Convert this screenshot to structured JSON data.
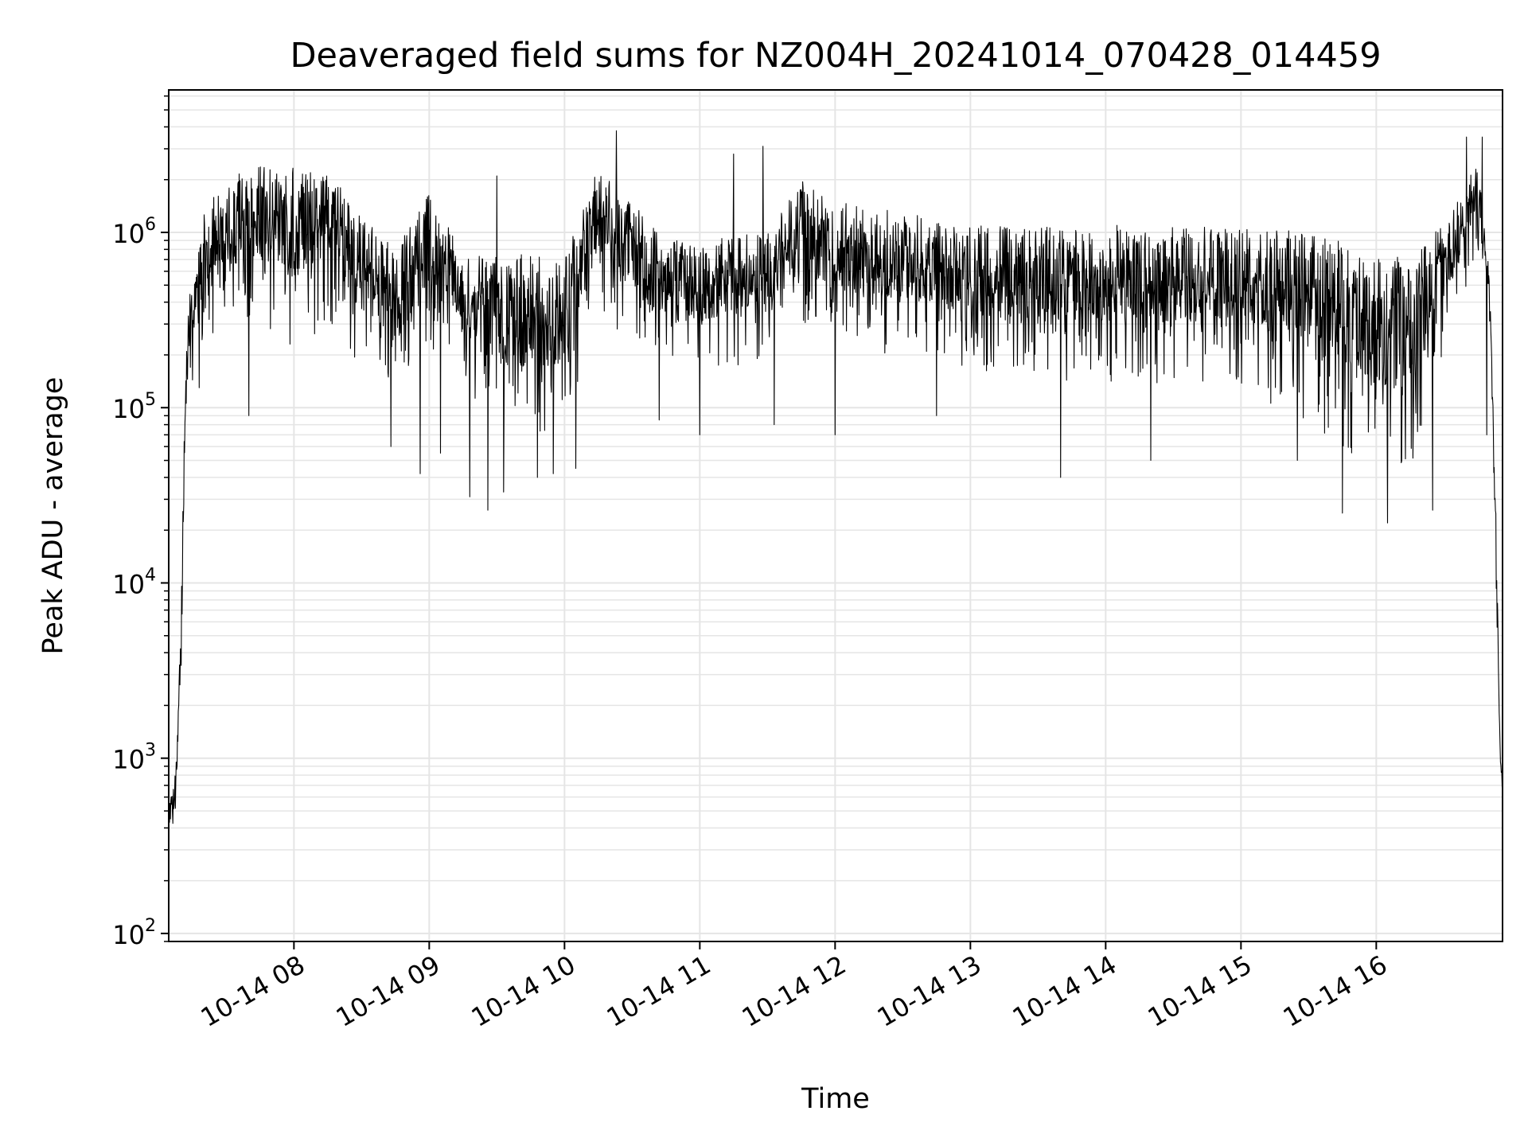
{
  "chart_data": {
    "type": "line",
    "title": "Deaveraged field sums for NZ004H_20241014_070428_014459",
    "xlabel": "Time",
    "ylabel": "Peak ADU - average",
    "yscale": "log",
    "ylim": [
      90,
      6500000
    ],
    "xlim": [
      "2024-10-14 07:04:28",
      "2024-10-14 16:56:00"
    ],
    "grid": true,
    "line_color": "#000000",
    "grid_color": "#e5e5e5",
    "x_ticks": [
      {
        "time": "2024-10-14 08:00",
        "label": "10-14 08"
      },
      {
        "time": "2024-10-14 09:00",
        "label": "10-14 09"
      },
      {
        "time": "2024-10-14 10:00",
        "label": "10-14 10"
      },
      {
        "time": "2024-10-14 11:00",
        "label": "10-14 11"
      },
      {
        "time": "2024-10-14 12:00",
        "label": "10-14 12"
      },
      {
        "time": "2024-10-14 13:00",
        "label": "10-14 13"
      },
      {
        "time": "2024-10-14 14:00",
        "label": "10-14 14"
      },
      {
        "time": "2024-10-14 15:00",
        "label": "10-14 15"
      },
      {
        "time": "2024-10-14 16:00",
        "label": "10-14 16"
      }
    ],
    "y_ticks": [
      {
        "value": 100,
        "base": "10",
        "exp": "2"
      },
      {
        "value": 1000,
        "base": "10",
        "exp": "3"
      },
      {
        "value": 10000,
        "base": "10",
        "exp": "4"
      },
      {
        "value": 100000,
        "base": "10",
        "exp": "5"
      },
      {
        "value": 1000000,
        "base": "10",
        "exp": "6"
      }
    ],
    "series": [
      {
        "name": "",
        "envelope": [
          {
            "time": "2024-10-14 07:04:28",
            "low": 260,
            "high": 600
          },
          {
            "time": "2024-10-14 07:06:00",
            "low": 350,
            "high": 700
          },
          {
            "time": "2024-10-14 07:08:00",
            "low": 450,
            "high": 1000
          },
          {
            "time": "2024-10-14 07:10:00",
            "low": 1500,
            "high": 12000
          },
          {
            "time": "2024-10-14 07:12:00",
            "low": 60000,
            "high": 170000
          },
          {
            "time": "2024-10-14 07:14:00",
            "low": 130000,
            "high": 550000
          },
          {
            "time": "2024-10-14 07:20:00",
            "low": 170000,
            "high": 1400000
          },
          {
            "time": "2024-10-14 07:30:00",
            "low": 300000,
            "high": 2000000
          },
          {
            "time": "2024-10-14 07:45:00",
            "low": 300000,
            "high": 2500000
          },
          {
            "time": "2024-10-14 08:00:00",
            "low": 200000,
            "high": 2500000
          },
          {
            "time": "2024-10-14 08:15:00",
            "low": 300000,
            "high": 2300000
          },
          {
            "time": "2024-10-14 08:30:00",
            "low": 150000,
            "high": 1300000
          },
          {
            "time": "2024-10-14 08:45:00",
            "low": 100000,
            "high": 800000
          },
          {
            "time": "2024-10-14 09:00:00",
            "low": 200000,
            "high": 1900000
          },
          {
            "time": "2024-10-14 09:15:00",
            "low": 150000,
            "high": 700000
          },
          {
            "time": "2024-10-14 09:30:00",
            "low": 60000,
            "high": 800000
          },
          {
            "time": "2024-10-14 09:45:00",
            "low": 60000,
            "high": 800000
          },
          {
            "time": "2024-10-14 10:00:00",
            "low": 70000,
            "high": 700000
          },
          {
            "time": "2024-10-14 10:15:00",
            "low": 400000,
            "high": 2500000
          },
          {
            "time": "2024-10-14 10:30:00",
            "low": 200000,
            "high": 1500000
          },
          {
            "time": "2024-10-14 10:45:00",
            "low": 150000,
            "high": 900000
          },
          {
            "time": "2024-10-14 11:00:00",
            "low": 150000,
            "high": 900000
          },
          {
            "time": "2024-10-14 11:30:00",
            "low": 180000,
            "high": 1000000
          },
          {
            "time": "2024-10-14 11:45:00",
            "low": 250000,
            "high": 2000000
          },
          {
            "time": "2024-10-14 12:00:00",
            "low": 200000,
            "high": 1500000
          },
          {
            "time": "2024-10-14 12:30:00",
            "low": 200000,
            "high": 1300000
          },
          {
            "time": "2024-10-14 13:00:00",
            "low": 150000,
            "high": 1100000
          },
          {
            "time": "2024-10-14 13:30:00",
            "low": 150000,
            "high": 1100000
          },
          {
            "time": "2024-10-14 14:00:00",
            "low": 130000,
            "high": 1100000
          },
          {
            "time": "2024-10-14 14:30:00",
            "low": 130000,
            "high": 1100000
          },
          {
            "time": "2024-10-14 15:00:00",
            "low": 120000,
            "high": 1100000
          },
          {
            "time": "2024-10-14 15:30:00",
            "low": 80000,
            "high": 1000000
          },
          {
            "time": "2024-10-14 16:00:00",
            "low": 40000,
            "high": 800000
          },
          {
            "time": "2024-10-14 16:15:00",
            "low": 40000,
            "high": 700000
          },
          {
            "time": "2024-10-14 16:30:00",
            "low": 200000,
            "high": 1200000
          },
          {
            "time": "2024-10-14 16:45:00",
            "low": 600000,
            "high": 2500000
          },
          {
            "time": "2024-10-14 16:50:00",
            "low": 300000,
            "high": 700000
          },
          {
            "time": "2024-10-14 16:53:00",
            "low": 8000,
            "high": 30000
          },
          {
            "time": "2024-10-14 16:55:00",
            "low": 800,
            "high": 1200
          },
          {
            "time": "2024-10-14 16:56:00",
            "low": 500,
            "high": 800
          }
        ],
        "spikes": [
          {
            "time": "2024-10-14 07:18:00",
            "value": 130000
          },
          {
            "time": "2024-10-14 07:40:00",
            "value": 90000
          },
          {
            "time": "2024-10-14 08:43:00",
            "value": 60000
          },
          {
            "time": "2024-10-14 08:56:00",
            "value": 42000
          },
          {
            "time": "2024-10-14 09:05:00",
            "value": 55000
          },
          {
            "time": "2024-10-14 09:18:00",
            "value": 31000
          },
          {
            "time": "2024-10-14 09:26:00",
            "value": 26000
          },
          {
            "time": "2024-10-14 09:30:00",
            "value": 2100000
          },
          {
            "time": "2024-10-14 09:33:00",
            "value": 33000
          },
          {
            "time": "2024-10-14 09:48:00",
            "value": 40000
          },
          {
            "time": "2024-10-14 09:55:00",
            "value": 42000
          },
          {
            "time": "2024-10-14 10:05:00",
            "value": 45000
          },
          {
            "time": "2024-10-14 10:23:00",
            "value": 3800000
          },
          {
            "time": "2024-10-14 10:42:00",
            "value": 85000
          },
          {
            "time": "2024-10-14 11:00:00",
            "value": 70000
          },
          {
            "time": "2024-10-14 11:15:00",
            "value": 2800000
          },
          {
            "time": "2024-10-14 11:28:00",
            "value": 3100000
          },
          {
            "time": "2024-10-14 11:33:00",
            "value": 80000
          },
          {
            "time": "2024-10-14 12:00:00",
            "value": 70000
          },
          {
            "time": "2024-10-14 12:45:00",
            "value": 90000
          },
          {
            "time": "2024-10-14 13:40:00",
            "value": 40000
          },
          {
            "time": "2024-10-14 14:20:00",
            "value": 50000
          },
          {
            "time": "2024-10-14 15:25:00",
            "value": 50000
          },
          {
            "time": "2024-10-14 15:45:00",
            "value": 25000
          },
          {
            "time": "2024-10-14 16:05:00",
            "value": 22000
          },
          {
            "time": "2024-10-14 16:25:00",
            "value": 26000
          },
          {
            "time": "2024-10-14 16:40:00",
            "value": 3500000
          },
          {
            "time": "2024-10-14 16:47:00",
            "value": 3500000
          },
          {
            "time": "2024-10-14 16:49:00",
            "value": 70000
          }
        ]
      }
    ]
  }
}
